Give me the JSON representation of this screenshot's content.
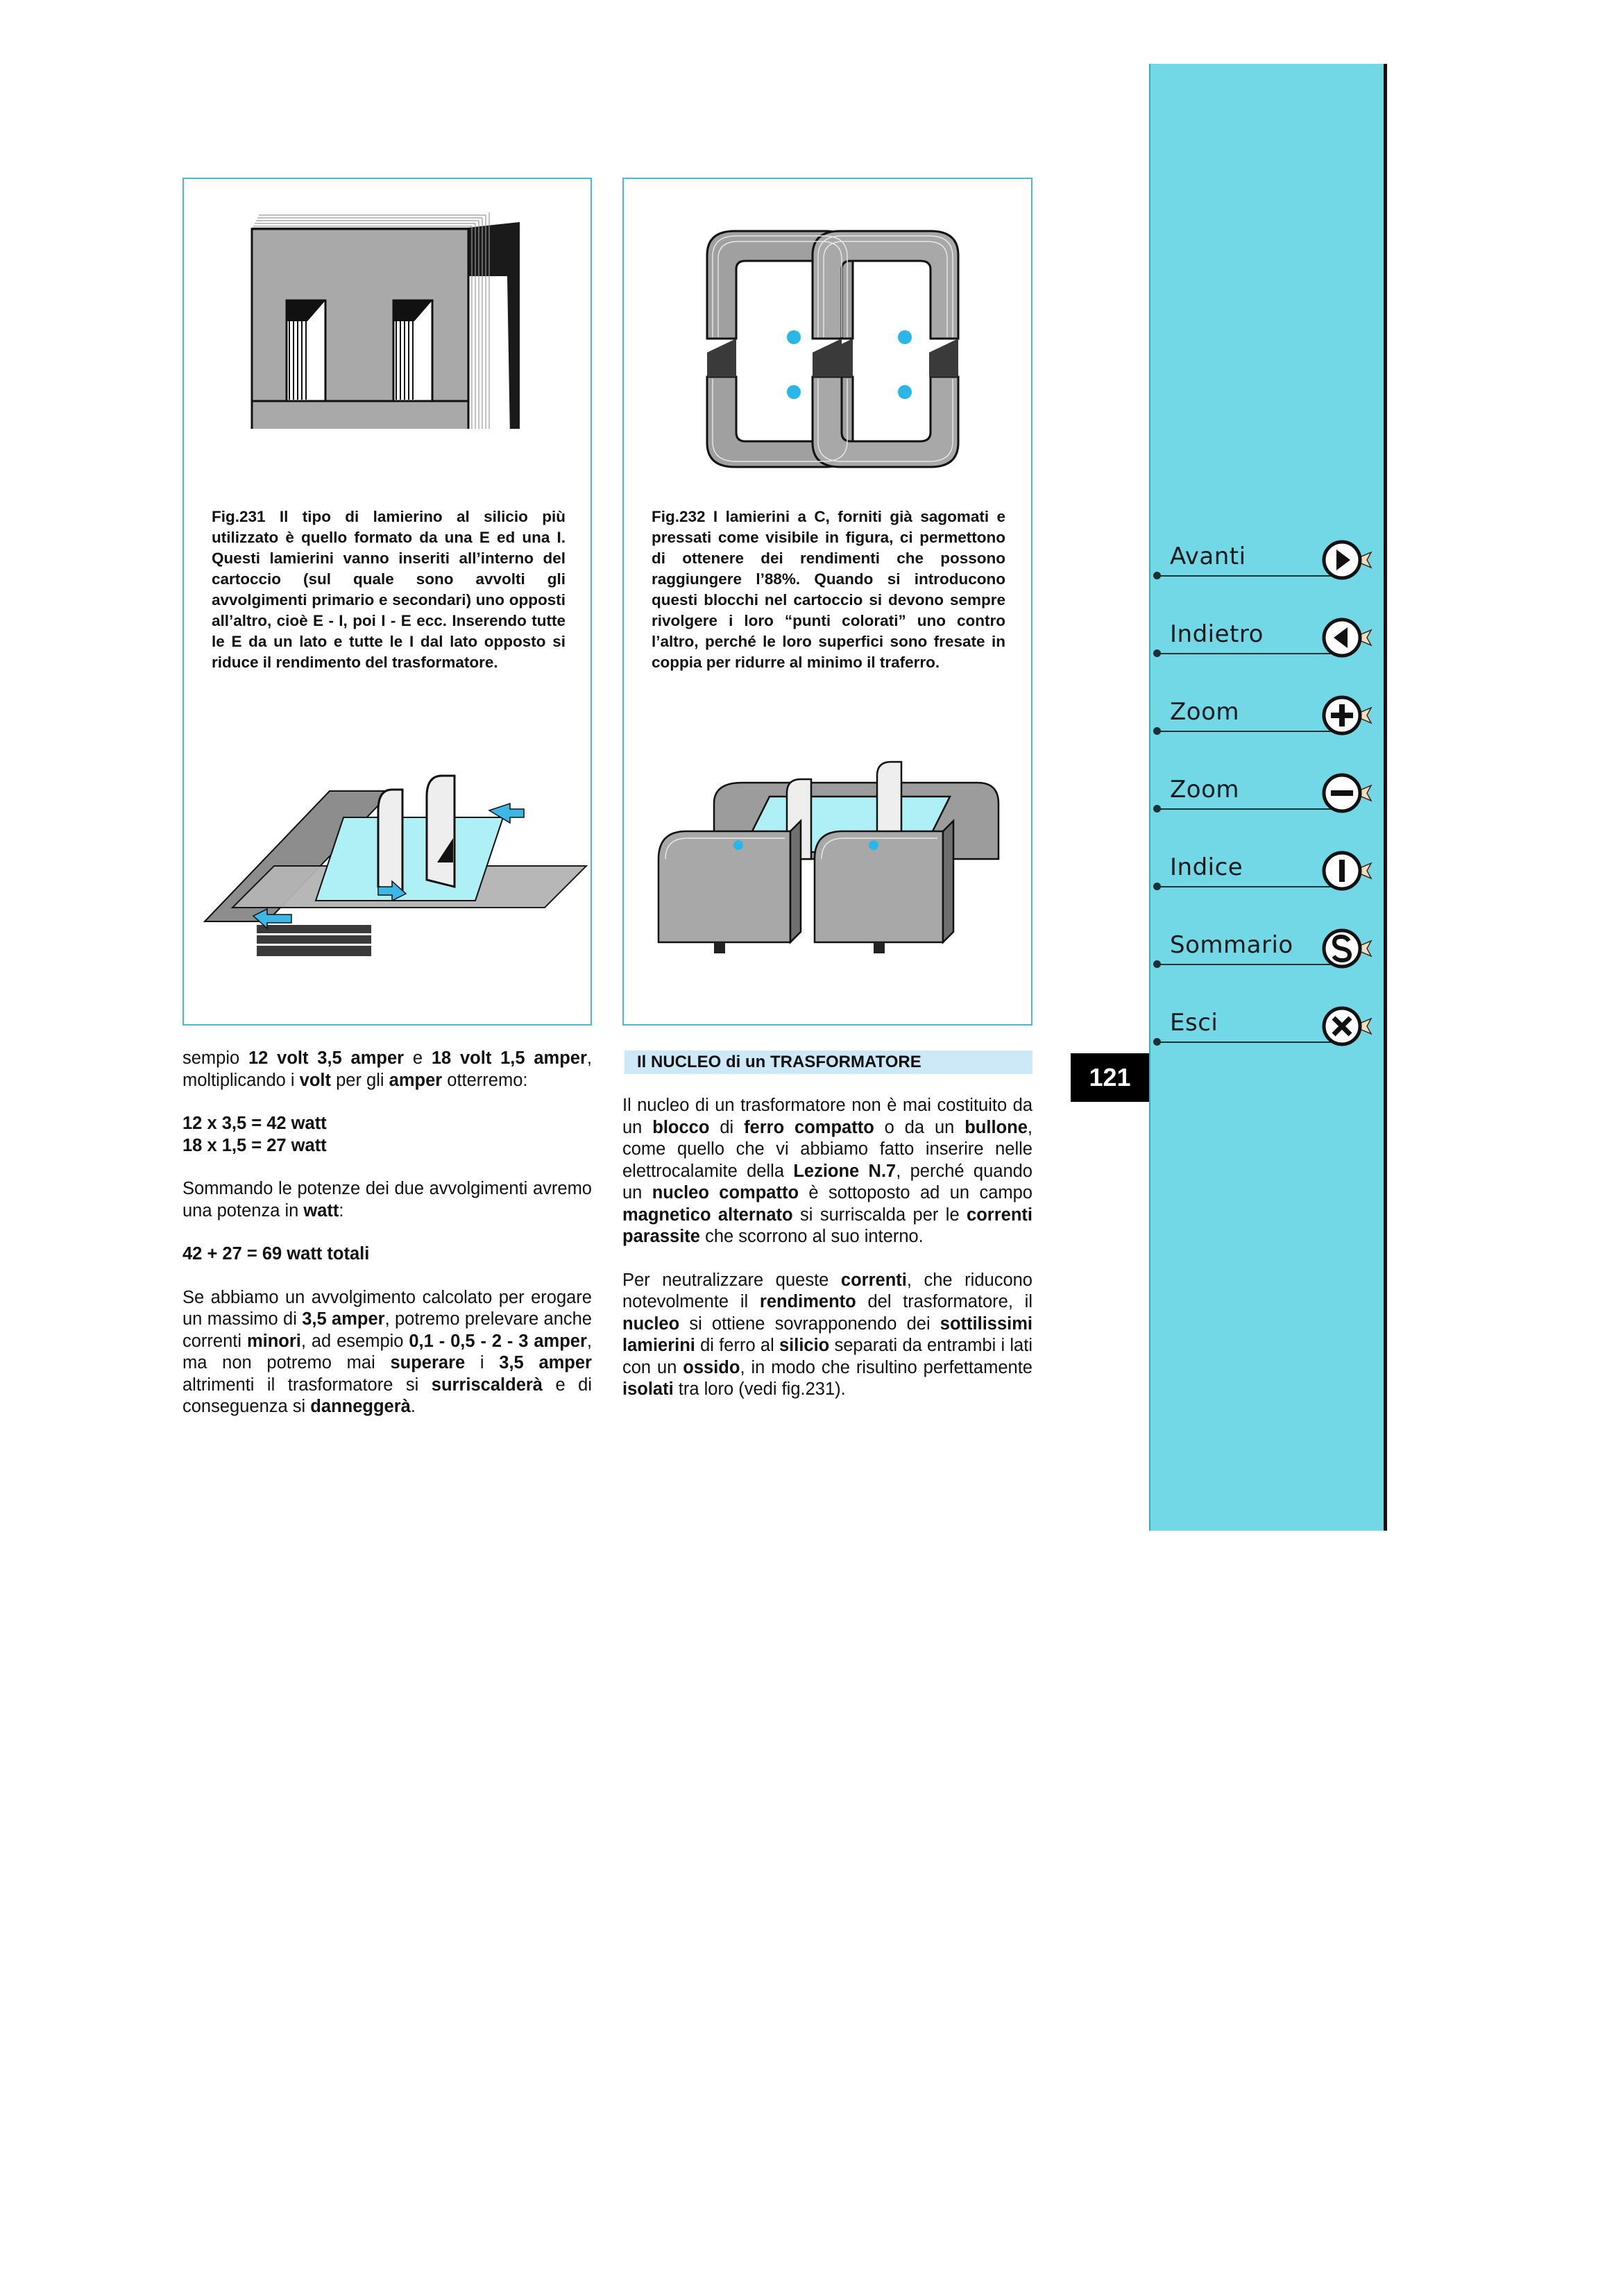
{
  "figures": {
    "fig231": {
      "caption": "Fig.231 Il tipo di lamierino al silicio più utilizzato è quello formato da una E ed una I. Questi lamierini vanno inseriti all’interno del cartoccio (sul quale sono avvolti gli avvolgimenti primario e secondari) uno opposti all’altro, cioè E - I, poi I - E ecc. Inserendo tutte le E da un lato e tutte le I dal lato opposto si riduce il rendimento del trasformatore."
    },
    "fig232": {
      "caption": "Fig.232 I lamierini a C, forniti già sagomati e pressati come visibile in figura, ci permettono di ottenere dei rendimenti che possono raggiungere l’88%. Quando si introducono questi blocchi nel cartoccio si devono sempre rivolgere i loro “punti colorati” uno contro l’altro, perché le loro superfici sono fresate in coppia per ridurre al minimo il traferro."
    }
  },
  "section_title": "Il NUCLEO di un TRASFORMATORE",
  "page_number": "121",
  "nav": {
    "avanti": "Avanti",
    "indietro": "Indietro",
    "zoom_in": "Zoom",
    "zoom_out": "Zoom",
    "indice": "Indice",
    "sommario": "Sommario",
    "esci": "Esci"
  },
  "colors": {
    "sidebar": "#72d8e6",
    "frame": "#4fb8c8",
    "section_band": "#cde9f7",
    "accent_dot": "#29b6e8"
  }
}
